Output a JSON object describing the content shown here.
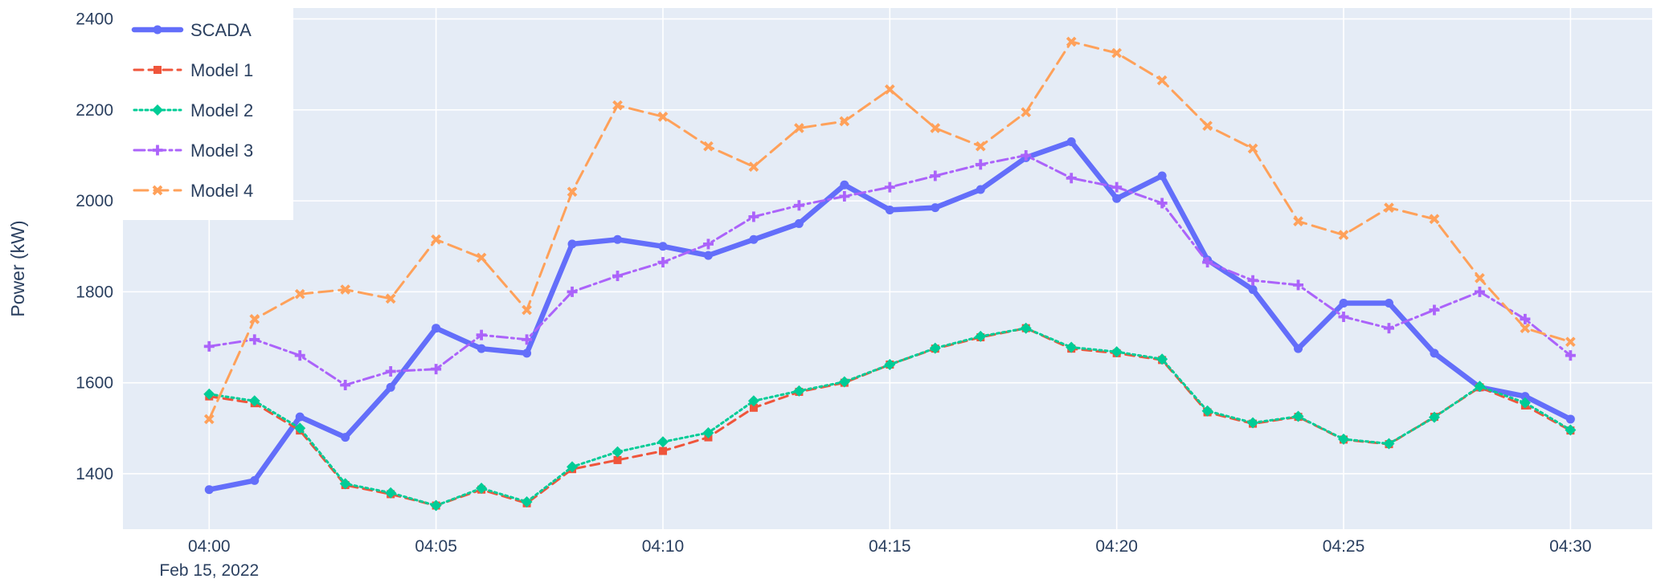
{
  "figure": {
    "y_axis_title": "Power (kW)",
    "date_label": "Feb 15, 2022"
  },
  "chart_data": {
    "type": "line",
    "title": "",
    "xlabel": "Feb 15, 2022",
    "ylabel": "Power (kW)",
    "grid": true,
    "legend_position": "top-left-inside",
    "plot_bg_color": "#e5ecf6",
    "grid_color": "#ffffff",
    "text_color": "#2a3f5f",
    "ylim": [
      1278,
      2424
    ],
    "y_ticks": [
      1400,
      1600,
      1800,
      2000,
      2200,
      2400
    ],
    "x_tick_indices": [
      0,
      5,
      10,
      15,
      20,
      25,
      30
    ],
    "x_tick_labels": [
      "04:00",
      "04:05",
      "04:10",
      "04:15",
      "04:20",
      "04:25",
      "04:30"
    ],
    "x_labels": [
      "04:00",
      "04:01",
      "04:02",
      "04:03",
      "04:04",
      "04:05",
      "04:06",
      "04:07",
      "04:08",
      "04:09",
      "04:10",
      "04:11",
      "04:12",
      "04:13",
      "04:14",
      "04:15",
      "04:16",
      "04:17",
      "04:18",
      "04:19",
      "04:20",
      "04:21",
      "04:22",
      "04:23",
      "04:24",
      "04:25",
      "04:26",
      "04:27",
      "04:28",
      "04:29",
      "04:30"
    ],
    "series": [
      {
        "name": "SCADA",
        "color": "#636efa",
        "line_style": "solid",
        "marker": "circle",
        "line_width": 6.5,
        "values": [
          1365,
          1385,
          1525,
          1480,
          1590,
          1720,
          1675,
          1665,
          1905,
          1915,
          1900,
          1880,
          1915,
          1950,
          2035,
          1980,
          1985,
          2025,
          2095,
          2130,
          2005,
          2055,
          1870,
          1805,
          1675,
          1775,
          1775,
          1665,
          1590,
          1570,
          1520
        ]
      },
      {
        "name": "Model 1",
        "color": "#EF553B",
        "line_style": "dash",
        "marker": "square",
        "line_width": 3,
        "values": [
          1570,
          1555,
          1495,
          1375,
          1355,
          1330,
          1365,
          1335,
          1410,
          1430,
          1450,
          1480,
          1545,
          1580,
          1600,
          1640,
          1675,
          1700,
          1720,
          1675,
          1665,
          1650,
          1535,
          1510,
          1525,
          1475,
          1465,
          1525,
          1590,
          1550,
          1495
        ]
      },
      {
        "name": "Model 2",
        "color": "#00cc96",
        "line_style": "dot",
        "marker": "diamond",
        "line_width": 3,
        "values": [
          1575,
          1560,
          1500,
          1378,
          1358,
          1330,
          1368,
          1338,
          1415,
          1448,
          1470,
          1490,
          1560,
          1582,
          1602,
          1640,
          1676,
          1702,
          1720,
          1678,
          1668,
          1652,
          1538,
          1512,
          1526,
          1476,
          1466,
          1524,
          1592,
          1556,
          1496
        ]
      },
      {
        "name": "Model 3",
        "color": "#ab63fa",
        "line_style": "dashdot",
        "marker": "cross",
        "line_width": 3,
        "values": [
          1680,
          1695,
          1660,
          1595,
          1625,
          1630,
          1705,
          1695,
          1800,
          1835,
          1865,
          1905,
          1965,
          1990,
          2010,
          2030,
          2055,
          2080,
          2100,
          2050,
          2030,
          1995,
          1865,
          1825,
          1815,
          1745,
          1720,
          1760,
          1800,
          1740,
          1660
        ]
      },
      {
        "name": "Model 4",
        "color": "#FFA15A",
        "line_style": "longdash",
        "marker": "x",
        "line_width": 3,
        "values": [
          1520,
          1740,
          1795,
          1805,
          1785,
          1915,
          1875,
          1760,
          2020,
          2210,
          2185,
          2120,
          2075,
          2160,
          2175,
          2245,
          2160,
          2120,
          2195,
          2350,
          2325,
          2265,
          2165,
          2115,
          1955,
          1925,
          1985,
          1960,
          1830,
          1720,
          1690
        ]
      }
    ]
  }
}
